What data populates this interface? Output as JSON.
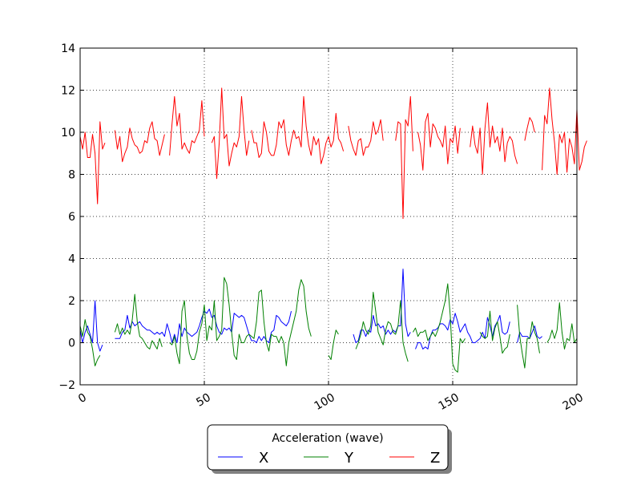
{
  "chart_data": {
    "type": "line",
    "xlim": [
      0,
      200
    ],
    "ylim": [
      -2,
      14
    ],
    "x_ticks": [
      0,
      50,
      100,
      150,
      200
    ],
    "y_ticks": [
      -2,
      0,
      2,
      4,
      6,
      8,
      10,
      12,
      14
    ],
    "grid": true,
    "legend": {
      "title": "Acceleration (wave)",
      "placement": "bottom-center"
    },
    "series": [
      {
        "name": "X",
        "color": "#0000ff",
        "segments": [
          {
            "x0": 0,
            "values": [
              0.6,
              0.0,
              0.5,
              0.8,
              0.4,
              0.0,
              2.0,
              0.0,
              -0.4,
              -0.1
            ]
          },
          {
            "x0": 14,
            "values": [
              0.2,
              0.2,
              0.2,
              0.5,
              0.6,
              1.3,
              0.7,
              1.0,
              0.8,
              0.9,
              1.0,
              0.8,
              0.7,
              0.6,
              0.6,
              0.5,
              0.4,
              0.5,
              0.4,
              0.5,
              0.3,
              0.9,
              0.5,
              0.0,
              0.4,
              0.0,
              0.9,
              0.3,
              0.7,
              0.5,
              0.4,
              0.3,
              0.4,
              0.5,
              0.8,
              1.2,
              1.5,
              1.4,
              1.6,
              1.2,
              1.3,
              0.8,
              0.5,
              0.4,
              0.7,
              0.6,
              0.7,
              0.5,
              1.4,
              1.3,
              1.2,
              1.3,
              1.2,
              0.8,
              0.4,
              0.1,
              0.1,
              0.0,
              0.3,
              0.1,
              0.3,
              0.1,
              0.0,
              0.5,
              0.6,
              1.3,
              1.2,
              1.0,
              0.9,
              0.8,
              1.0,
              1.5
            ]
          },
          {
            "x0": 110,
            "values": [
              0.4,
              0.0,
              0.1,
              0.6,
              0.6,
              0.3,
              0.6,
              0.5,
              1.3,
              0.8,
              0.9,
              0.7,
              0.8,
              0.4,
              0.6,
              0.4,
              0.6,
              0.5,
              0.8,
              0.8,
              3.5,
              0.9,
              0.3,
              0.5
            ]
          },
          {
            "x0": 135,
            "values": [
              -0.3,
              0.0,
              0.0,
              -0.3,
              -0.2,
              -0.3,
              0.3,
              0.6,
              0.6,
              0.7,
              0.9,
              0.9,
              0.8,
              0.6,
              1.1,
              0.9,
              1.4,
              1.0,
              0.5,
              0.7,
              0.9,
              0.5,
              0.3,
              0.0,
              0.0,
              0.1,
              0.2,
              0.5,
              0.2,
              1.2,
              0.8,
              0.3,
              0.8,
              1.0,
              1.3,
              0.5,
              0.4,
              0.5,
              1.0
            ]
          },
          {
            "x0": 176,
            "values": [
              0.0,
              0.5,
              0.3,
              0.3,
              0.3,
              0.2,
              0.5,
              0.8,
              0.3,
              0.2,
              0.3
            ]
          }
        ]
      },
      {
        "name": "Y",
        "color": "#008000",
        "segments": [
          {
            "x0": 0,
            "values": [
              0.8,
              0.3,
              1.1,
              0.5,
              0.3,
              -0.3,
              -1.1,
              -0.8,
              -0.6
            ]
          },
          {
            "x0": 14,
            "values": [
              0.5,
              0.9,
              0.4,
              0.7,
              0.4,
              0.6,
              0.4,
              1.1,
              2.3,
              1.0,
              0.3,
              0.2,
              0.0,
              -0.2,
              -0.3,
              0.1,
              -0.1,
              -0.3,
              0.2,
              -0.2
            ]
          },
          {
            "x0": 36,
            "values": [
              0.0,
              -0.1,
              0.3,
              -0.5,
              -1.0,
              1.5,
              2.0,
              0.3,
              -0.5,
              -0.8,
              -0.8,
              -0.4,
              0.5,
              0.9,
              1.8,
              0.1,
              0.8,
              0.6,
              2.0,
              0.1,
              0.3,
              0.6,
              3.1,
              2.8,
              1.8,
              0.5,
              -0.6,
              -0.8,
              0.4,
              0.0,
              0.0,
              0.3,
              0.4,
              0.3,
              0.2,
              1.0,
              2.4,
              2.5,
              1.0,
              0.0,
              -0.4,
              0.4,
              0.3,
              0.3,
              0.0,
              0.3,
              0.0,
              -1.1,
              0.0,
              0.5,
              1.0,
              1.5,
              2.5,
              3.0,
              2.7,
              1.5,
              0.7,
              0.3
            ]
          },
          {
            "x0": 100,
            "values": [
              -0.6,
              -0.8,
              0.0,
              0.6,
              0.4
            ]
          },
          {
            "x0": 111,
            "values": [
              -0.3,
              0.0,
              0.4,
              1.0,
              0.6,
              0.4,
              0.8,
              2.4,
              1.5,
              0.5,
              0.2,
              -0.1,
              0.6,
              1.0,
              0.9,
              0.5,
              0.4,
              0.8,
              2.0,
              0.0,
              -0.5,
              -0.9
            ]
          },
          {
            "x0": 134,
            "values": [
              0.5,
              0.7,
              0.3,
              0.5,
              0.5,
              0.6,
              0.1,
              0.3,
              0.5,
              0.3,
              0.6,
              1.0,
              1.5,
              2.0,
              2.8,
              1.3,
              -1.0,
              -1.3,
              -1.4,
              0.2,
              0.0,
              0.2
            ]
          },
          {
            "x0": 161,
            "values": [
              0.5,
              0.3,
              0.2,
              0.3,
              1.5,
              0.1,
              0.7,
              1.0,
              0.3,
              -0.5,
              -0.3,
              -0.2,
              0.4
            ]
          },
          {
            "x0": 176,
            "values": [
              1.8,
              0.3,
              -0.5,
              -1.2,
              0.2,
              0.2,
              1.0,
              0.5,
              0.2,
              -0.5
            ]
          },
          {
            "x0": 188,
            "values": [
              0.0,
              0.2,
              0.6,
              0.2,
              0.6,
              1.9,
              0.5,
              -0.3,
              0.2,
              0.1,
              0.9,
              0.0,
              0.2
            ]
          }
        ]
      },
      {
        "name": "Z",
        "color": "#ff0000",
        "segments": [
          {
            "x0": 0,
            "values": [
              9.8,
              9.2,
              10.0,
              8.8,
              8.8,
              9.9,
              9.0,
              6.6,
              10.5,
              9.2,
              9.5
            ]
          },
          {
            "x0": 14,
            "values": [
              10.1,
              9.2,
              9.8,
              8.6,
              9.0,
              9.3,
              10.2,
              9.7,
              9.4,
              9.3,
              9.0,
              9.1,
              9.6,
              9.5,
              10.2,
              10.5,
              9.7,
              9.6,
              8.9,
              9.4,
              9.9
            ]
          },
          {
            "x0": 36,
            "values": [
              8.9,
              10.4,
              11.7,
              10.3,
              10.9,
              9.2,
              9.5,
              9.2,
              9.0,
              9.6,
              9.5,
              9.8,
              10.1,
              11.5,
              9.8
            ]
          },
          {
            "x0": 53,
            "values": [
              9.5,
              9.8,
              7.8,
              9.5,
              12.1,
              9.7,
              9.9,
              8.4,
              9.0,
              9.5,
              9.3,
              9.8,
              11.7,
              10.1,
              8.9,
              9.6
            ]
          },
          {
            "x0": 69,
            "values": [
              10.1,
              9.5,
              9.5,
              8.8,
              9.0,
              10.5,
              10.0,
              9.1,
              8.9,
              8.9,
              9.4,
              10.5,
              10.2,
              10.6,
              9.4,
              8.9,
              9.6,
              10.1,
              9.7,
              9.8,
              9.3,
              11.7,
              10.3,
              9.4,
              8.9,
              9.8,
              9.4,
              9.7,
              8.5,
              8.9,
              9.5,
              9.8,
              9.3,
              9.6,
              10.9,
              9.7,
              9.5,
              9.1
            ]
          },
          {
            "x0": 108,
            "values": [
              10.3,
              9.6,
              9.2,
              8.9,
              9.6,
              9.7,
              8.9,
              9.3,
              9.3,
              9.6,
              10.5,
              9.9,
              10.1,
              10.6,
              9.6
            ]
          },
          {
            "x0": 127,
            "values": [
              9.6,
              10.5,
              10.4,
              5.9,
              10.6,
              10.3,
              11.7,
              9.1
            ]
          },
          {
            "x0": 136,
            "values": [
              10.0,
              9.4,
              8.2,
              10.5,
              10.9,
              9.3,
              10.4,
              10.2,
              9.8,
              9.6,
              9.3,
              10.3,
              8.5,
              9.7,
              9.5,
              10.3,
              9.0,
              10.2
            ]
          },
          {
            "x0": 157,
            "values": [
              9.3,
              10.3,
              9.4,
              9.0,
              10.2,
              8.0,
              10.2,
              11.4,
              9.3,
              10.3,
              9.5,
              9.8,
              9.1,
              10.2,
              8.6,
              9.5,
              9.8,
              9.6,
              8.9,
              8.5
            ]
          },
          {
            "x0": 179,
            "values": [
              9.6,
              10.2,
              10.7,
              10.5,
              10.0
            ]
          },
          {
            "x0": 186,
            "values": [
              8.2,
              10.8,
              10.4,
              12.1,
              10.6,
              9.5,
              8.0,
              9.9,
              9.5,
              10.0,
              8.1,
              9.7,
              9.3,
              8.5,
              11.1,
              8.2,
              8.6,
              9.3,
              9.6
            ]
          }
        ]
      }
    ]
  }
}
